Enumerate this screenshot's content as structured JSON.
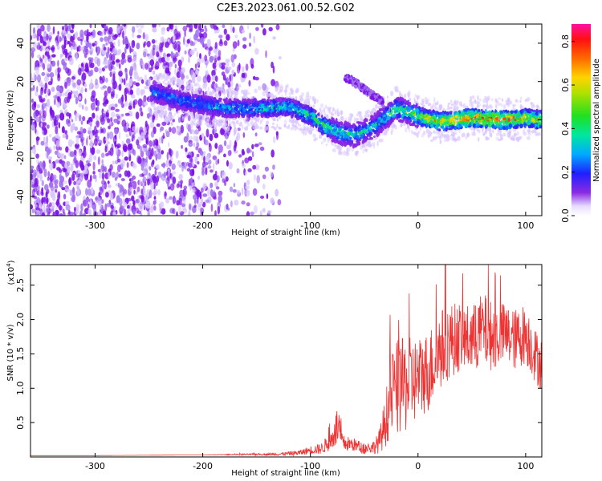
{
  "title": "C2E3.2023.061.00.52.G02",
  "colors": {
    "snr_line": "#ee3333",
    "blob_light": "#d8c4ff",
    "blob_mid": "#a070f0",
    "blob_dark": "#7a10e8"
  },
  "chart_data": [
    {
      "type": "heatmap",
      "xlabel": "Height of straight line (km)",
      "ylabel": "Frequency (Hz)",
      "xlim": [
        -360,
        115
      ],
      "ylim": [
        -50,
        50
      ],
      "x_ticks": [
        -300,
        -200,
        -100,
        0,
        100
      ],
      "x_tick_labels": [
        "-300",
        "-200",
        "-100",
        "0",
        "100"
      ],
      "y_ticks": [
        -40,
        -20,
        0,
        20,
        40
      ],
      "y_tick_labels": [
        "-40",
        "-20",
        "0",
        "20",
        "40"
      ],
      "colorbar": {
        "label": "Normalized spectral amplitude",
        "range": [
          0,
          0.88
        ],
        "ticks": [
          0.0,
          0.2,
          0.4,
          0.6,
          0.8
        ],
        "tick_labels": [
          "0.0",
          "0.2",
          "0.4",
          "0.6",
          "0.8"
        ],
        "colormap": "rainbow"
      },
      "ridge": {
        "x": [
          -245,
          -220,
          -180,
          -140,
          -120,
          -100,
          -85,
          -70,
          -60,
          -50,
          -40,
          -20,
          0,
          20,
          50,
          80,
          100,
          115
        ],
        "frequency_hz": [
          14,
          10,
          6,
          6,
          7,
          2,
          -4,
          -7,
          -8,
          -6,
          -3,
          6,
          2,
          -1,
          1,
          0,
          1,
          0
        ],
        "peak_amplitude": [
          0.3,
          0.3,
          0.35,
          0.4,
          0.4,
          0.45,
          0.5,
          0.5,
          0.45,
          0.4,
          0.4,
          0.55,
          0.6,
          0.75,
          0.85,
          0.88,
          0.75,
          0.7
        ]
      },
      "secondary_ridge": {
        "x": [
          -68,
          -60,
          -50,
          -40,
          -32
        ],
        "frequency_hz": [
          22,
          20,
          16,
          12,
          9
        ]
      }
    },
    {
      "type": "line",
      "xlabel": "Height of straight line (km)",
      "ylabel": "SNR (10 * v/v)",
      "y_scale_label": "(x10",
      "y_scale_exponent": "4",
      "y_scale_suffix": ")",
      "xlim": [
        -360,
        115
      ],
      "ylim": [
        0,
        2.8
      ],
      "x_ticks": [
        -300,
        -200,
        -100,
        0,
        100
      ],
      "x_tick_labels": [
        "-300",
        "-200",
        "-100",
        "0",
        "100"
      ],
      "y_ticks": [
        0.5,
        1.0,
        1.5,
        2.0,
        2.5
      ],
      "y_tick_labels": [
        "0.5",
        "1.0",
        "1.5",
        "2.0",
        "2.5"
      ],
      "series": [
        {
          "x": [
            -360,
            -300,
            -200,
            -130,
            -110,
            -100,
            -90,
            -80,
            -75,
            -70,
            -60,
            -50,
            -40,
            -35,
            -30,
            -25,
            -20,
            -10,
            0,
            10,
            20,
            30,
            40,
            50,
            60,
            70,
            80,
            90,
            100,
            110,
            115
          ],
          "y": [
            0.02,
            0.02,
            0.03,
            0.04,
            0.06,
            0.1,
            0.12,
            0.25,
            0.45,
            0.2,
            0.18,
            0.12,
            0.15,
            0.25,
            0.55,
            0.9,
            1.0,
            1.05,
            1.15,
            1.25,
            1.55,
            1.7,
            1.75,
            1.7,
            1.85,
            1.75,
            1.8,
            1.7,
            1.8,
            1.45,
            1.35
          ],
          "noise": [
            0,
            0,
            0,
            0.02,
            0.04,
            0.06,
            0.08,
            0.15,
            0.3,
            0.12,
            0.1,
            0.08,
            0.1,
            0.2,
            0.4,
            0.6,
            0.7,
            0.7,
            0.6,
            0.6,
            0.6,
            0.55,
            0.5,
            0.5,
            0.55,
            0.5,
            0.45,
            0.45,
            0.45,
            0.4,
            0.4
          ]
        }
      ]
    }
  ]
}
